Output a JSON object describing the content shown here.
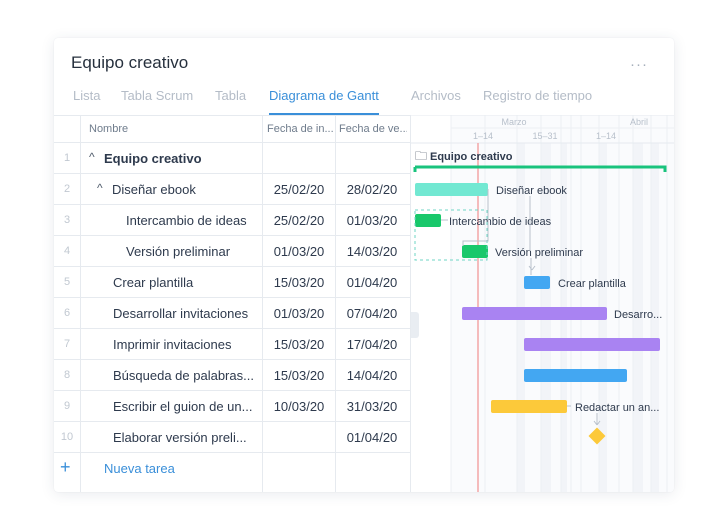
{
  "project": {
    "title": "Equipo creativo",
    "more_icon": "···"
  },
  "tabs": [
    {
      "label": "Lista",
      "active": false
    },
    {
      "label": "Tabla Scrum",
      "active": false
    },
    {
      "label": "Tabla",
      "active": false
    },
    {
      "label": "Diagrama de Gantt",
      "active": true
    },
    {
      "label": "Archivos",
      "active": false
    },
    {
      "label": "Registro de tiempo",
      "active": false
    }
  ],
  "grid": {
    "headers": {
      "name": "Nombre",
      "start": "Fecha de in...",
      "end": "Fecha de ve..."
    },
    "rows": [
      {
        "num": "1",
        "name": "Equipo creativo",
        "start": "",
        "end": "",
        "caret": "^",
        "bold": true
      },
      {
        "num": "2",
        "name": "Diseñar ebook",
        "start": "25/02/20",
        "end": "28/02/20",
        "caret": "^",
        "bold": false
      },
      {
        "num": "3",
        "name": "Intercambio de ideas",
        "start": "25/02/20",
        "end": "01/03/20",
        "caret": "",
        "bold": false
      },
      {
        "num": "4",
        "name": "Versión preliminar",
        "start": "01/03/20",
        "end": "14/03/20",
        "caret": "",
        "bold": false
      },
      {
        "num": "5",
        "name": "Crear plantilla",
        "start": "15/03/20",
        "end": "01/04/20",
        "caret": "",
        "bold": false
      },
      {
        "num": "6",
        "name": "Desarrollar invitaciones",
        "start": "01/03/20",
        "end": "07/04/20",
        "caret": "",
        "bold": false
      },
      {
        "num": "7",
        "name": "Imprimir invitaciones",
        "start": "15/03/20",
        "end": "17/04/20",
        "caret": "",
        "bold": false
      },
      {
        "num": "8",
        "name": "Búsqueda de palabras...",
        "start": "15/03/20",
        "end": "14/04/20",
        "caret": "",
        "bold": false
      },
      {
        "num": "9",
        "name": "Escribir el guion de un...",
        "start": "10/03/20",
        "end": "31/03/20",
        "caret": "",
        "bold": false
      },
      {
        "num": "10",
        "name": "Elaborar versión preli...",
        "start": "",
        "end": "01/04/20",
        "caret": "",
        "bold": false
      }
    ],
    "new_task": {
      "icon": "+",
      "label": "Nueva tarea"
    }
  },
  "gantt": {
    "months": [
      "Marzo",
      "Abril"
    ],
    "weeks": [
      "1–14",
      "15–31",
      "1–14"
    ],
    "today_color": "#f3a6a6",
    "tasks": [
      {
        "label": "Equipo creativo",
        "kind": "project",
        "color": "#19c37d"
      },
      {
        "label": "Diseñar ebook",
        "kind": "bar",
        "color": "#72e8d2"
      },
      {
        "label": "Intercambio de ideas",
        "kind": "bar",
        "color": "#19c86b"
      },
      {
        "label": "Versión preliminar",
        "kind": "bar",
        "color": "#19c86b"
      },
      {
        "label": "Crear plantilla",
        "kind": "bar",
        "color": "#43a7f2"
      },
      {
        "label": "Desarro...",
        "kind": "bar",
        "color": "#a983f2"
      },
      {
        "label": "",
        "kind": "bar",
        "color": "#a983f2"
      },
      {
        "label": "",
        "kind": "bar",
        "color": "#43a7f2"
      },
      {
        "label": "Redactar un an...",
        "kind": "bar",
        "color": "#fcc93a"
      },
      {
        "label": "",
        "kind": "milestone",
        "color": "#fcc93a"
      }
    ]
  }
}
